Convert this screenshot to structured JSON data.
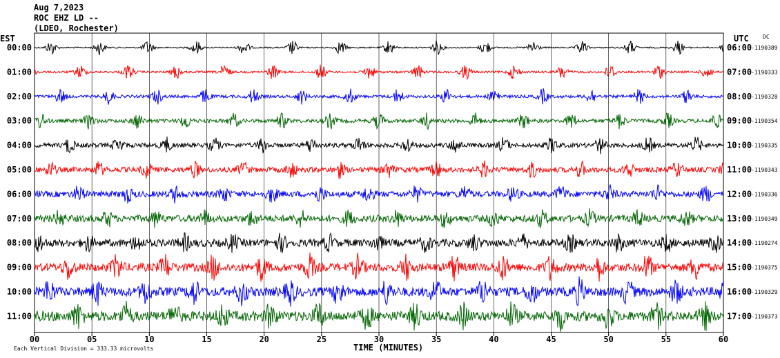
{
  "header": {
    "date": "Aug 7,2023",
    "station": "ROC EHZ LD --",
    "network": "(LDEO, Rochester)"
  },
  "left_zone_label": "EST",
  "right_zone_label": "UTC",
  "dc_label": "DC",
  "footer_left": "Each Vertical Division =  333.33 microvolts",
  "chart_data": {
    "type": "line",
    "title": "",
    "xlabel": "TIME (MINUTES)",
    "xlim": [
      0,
      60
    ],
    "x_ticks": [
      "00",
      "05",
      "10",
      "15",
      "20",
      "25",
      "30",
      "35",
      "40",
      "45",
      "50",
      "55",
      "60"
    ],
    "grid_vertical_every_minutes": 5,
    "color_cycle": [
      "#000000",
      "#ff0000",
      "#0000ff",
      "#006400"
    ],
    "rows": [
      {
        "est": "00:00",
        "utc": "06:00",
        "dc": "-1190389"
      },
      {
        "est": "01:00",
        "utc": "07:00",
        "dc": "-1190333"
      },
      {
        "est": "02:00",
        "utc": "08:00",
        "dc": "-1190328"
      },
      {
        "est": "03:00",
        "utc": "09:00",
        "dc": "-1190354"
      },
      {
        "est": "04:00",
        "utc": "10:00",
        "dc": "-1190335"
      },
      {
        "est": "05:00",
        "utc": "11:00",
        "dc": "-1190343"
      },
      {
        "est": "06:00",
        "utc": "12:00",
        "dc": "-1190336"
      },
      {
        "est": "07:00",
        "utc": "13:00",
        "dc": "-1190349"
      },
      {
        "est": "08:00",
        "utc": "14:00",
        "dc": "-1190274"
      },
      {
        "est": "09:00",
        "utc": "15:00",
        "dc": "-1190375"
      },
      {
        "est": "10:00",
        "utc": "16:00",
        "dc": "-1190329"
      },
      {
        "est": "11:00",
        "utc": "17:00",
        "dc": "-1190373"
      }
    ]
  }
}
